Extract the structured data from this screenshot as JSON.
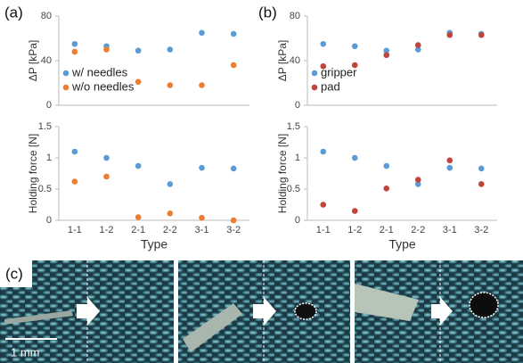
{
  "panel_labels": [
    "(a)",
    "(b)",
    "(c)"
  ],
  "scale_bar": "1 mm",
  "chart_data": [
    {
      "type": "dot",
      "ylabel": "ΔP [kPa]",
      "ylim": [
        0,
        80
      ],
      "yticks": [
        0,
        40,
        80
      ],
      "legend": "lower left",
      "series": [
        {
          "name": "w/ needles",
          "color": "#5b9bd5",
          "values": [
            55,
            53,
            49,
            50,
            65,
            64
          ]
        },
        {
          "name": "w/o needles",
          "color": "#ed7d31",
          "values": [
            48,
            50,
            21,
            18,
            18,
            36
          ]
        }
      ]
    },
    {
      "type": "dot",
      "ylabel": "Holding force [N]",
      "xlabel": "Type",
      "ylim": [
        0,
        1.5
      ],
      "yticks": [
        0,
        0.5,
        1,
        1.5
      ],
      "categories": [
        "1-1",
        "1-2",
        "2-1",
        "2-2",
        "3-1",
        "3-2"
      ],
      "series": [
        {
          "name": "w/ needles",
          "color": "#5b9bd5",
          "values": [
            1.1,
            1.0,
            0.87,
            0.58,
            0.84,
            0.83
          ]
        },
        {
          "name": "w/o needles",
          "color": "#ed7d31",
          "values": [
            0.62,
            0.7,
            0.05,
            0.11,
            0.04,
            0.0
          ]
        }
      ]
    },
    {
      "type": "dot",
      "ylabel": "ΔP [kPa]",
      "ylim": [
        0,
        80
      ],
      "yticks": [
        0,
        40,
        80
      ],
      "legend": "lower left",
      "series": [
        {
          "name": "gripper",
          "color": "#5b9bd5",
          "values": [
            55,
            53,
            49,
            50,
            65,
            64
          ]
        },
        {
          "name": "pad",
          "color": "#c0443a",
          "values": [
            35,
            36,
            45,
            54,
            63,
            63
          ]
        }
      ]
    },
    {
      "type": "dot",
      "ylabel": "Holding force [N]",
      "xlabel": "Type",
      "ylim": [
        0,
        1.5
      ],
      "yticks": [
        0,
        0.5,
        1,
        1.5
      ],
      "categories": [
        "1-1",
        "1-2",
        "2-1",
        "2-2",
        "3-1",
        "3-2"
      ],
      "series": [
        {
          "name": "gripper",
          "color": "#5b9bd5",
          "values": [
            1.1,
            1.0,
            0.87,
            0.58,
            0.84,
            0.83
          ]
        },
        {
          "name": "pad",
          "color": "#c0443a",
          "values": [
            0.25,
            0.15,
            0.51,
            0.65,
            0.96,
            0.58
          ]
        }
      ]
    }
  ]
}
